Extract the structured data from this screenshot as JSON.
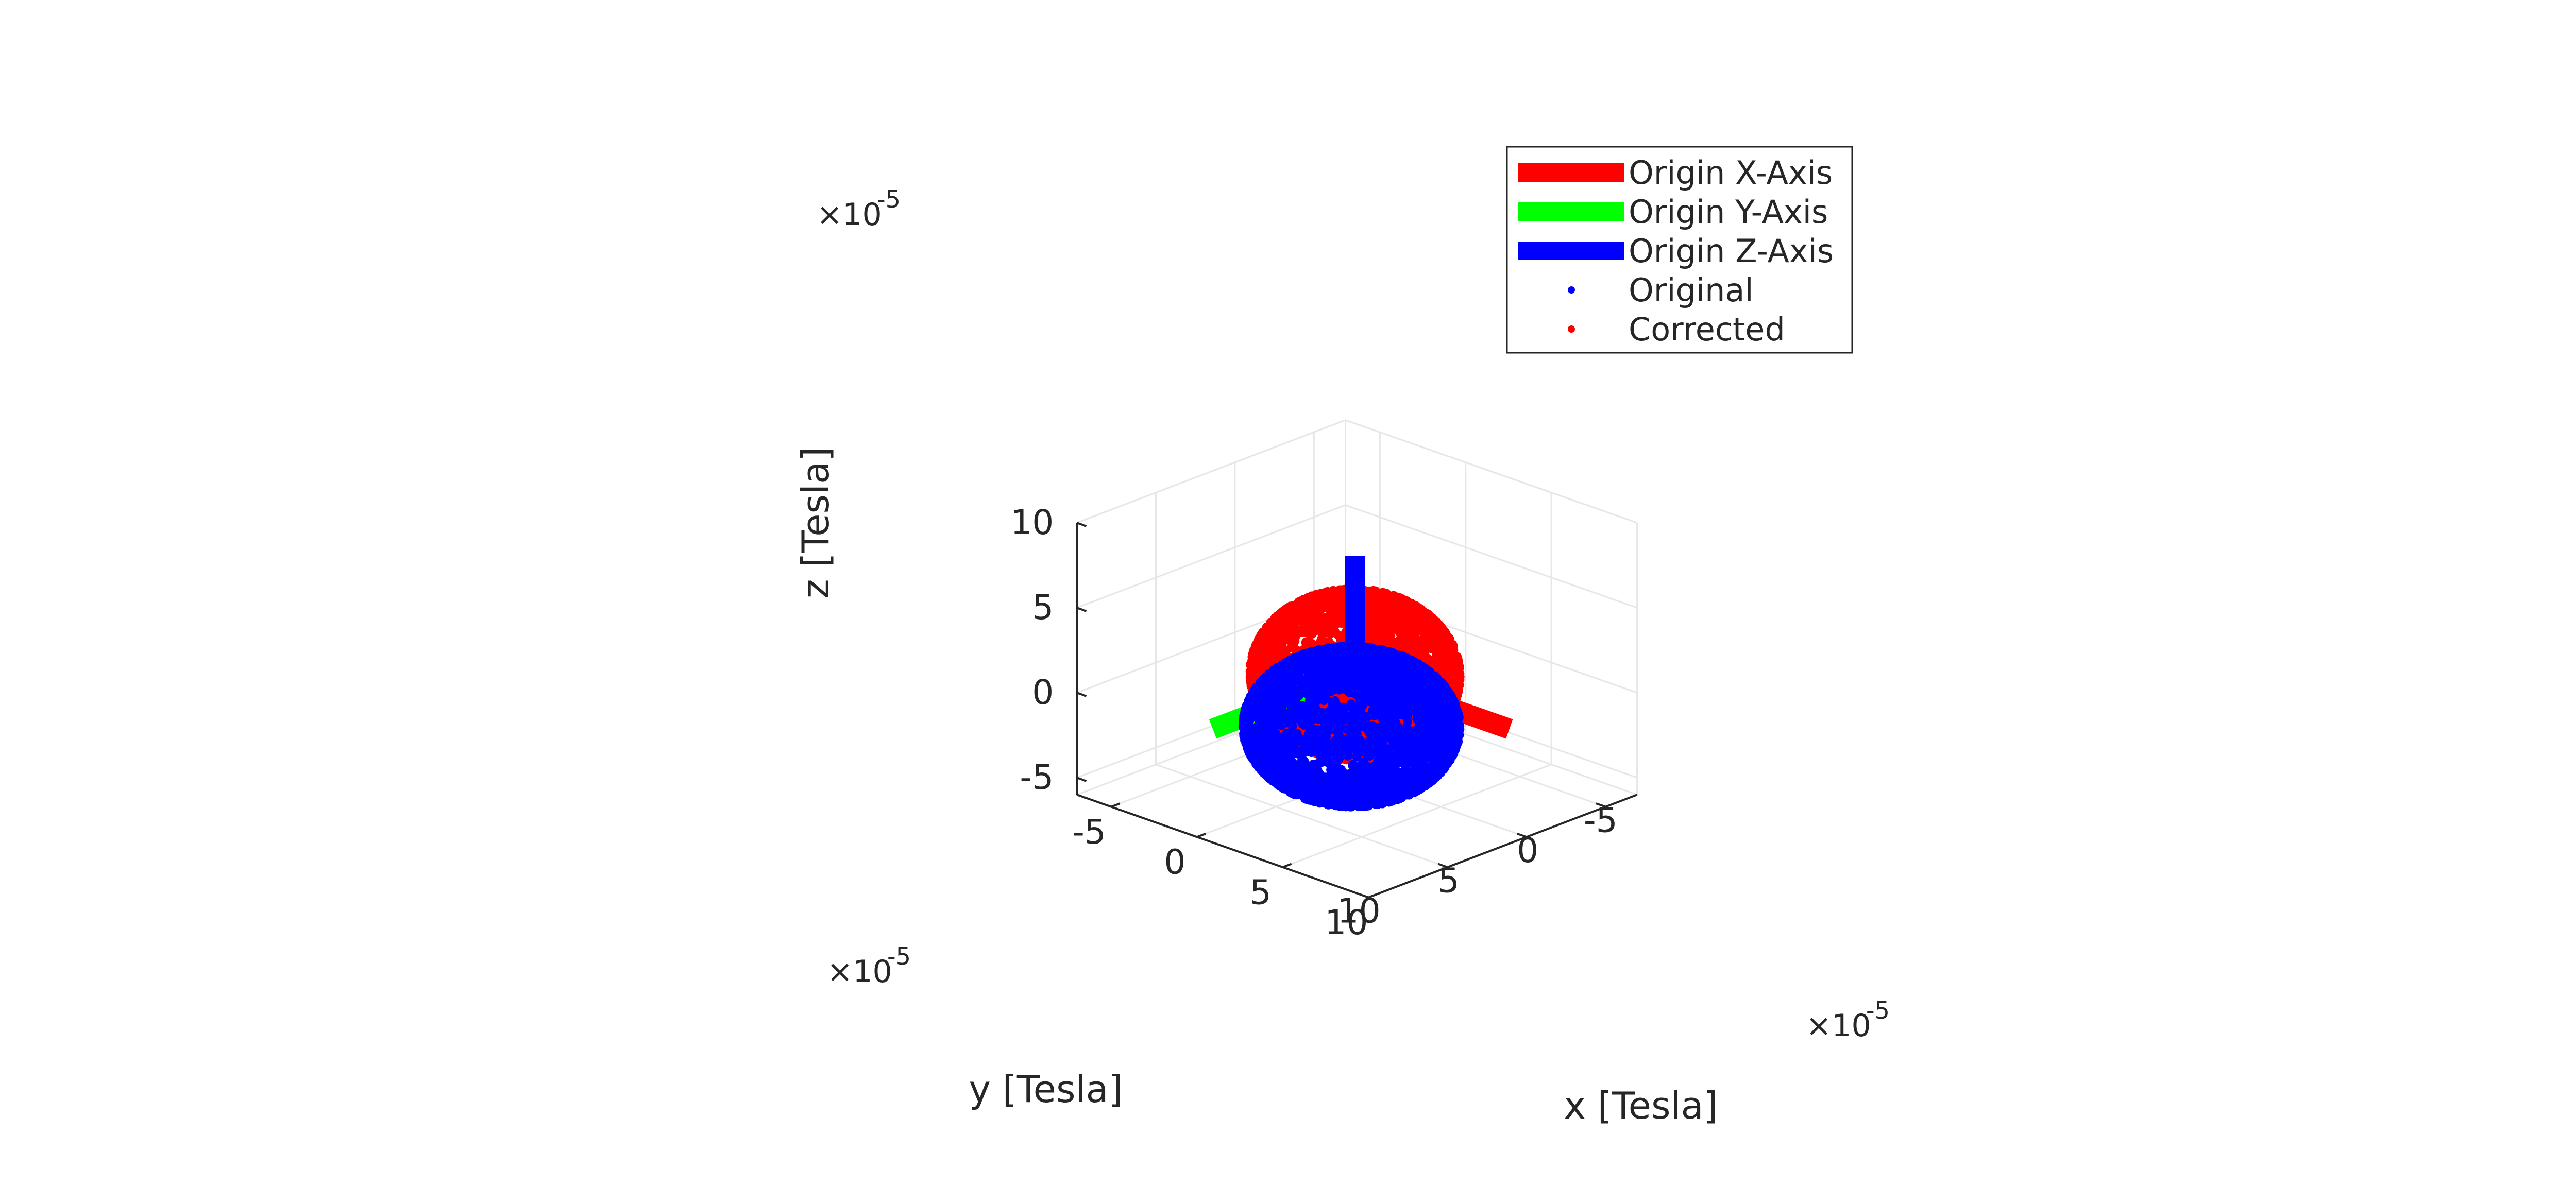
{
  "chart_data": {
    "type": "scatter",
    "dimensions": 3,
    "xlabel": "x [Tesla]",
    "ylabel": "y [Tesla]",
    "zlabel": "z [Tesla]",
    "scale_exponent_label": "×10",
    "scale_exponent": "-5",
    "xlim": [
      -7,
      10
    ],
    "ylim": [
      -7,
      10
    ],
    "zlim": [
      -6,
      10
    ],
    "xticks": [
      -5,
      0,
      5,
      10
    ],
    "yticks": [
      -5,
      0,
      5,
      10
    ],
    "zticks": [
      -5,
      0,
      5,
      10
    ],
    "xtick_labels": [
      "-5",
      "0",
      "5",
      "10"
    ],
    "ytick_labels": [
      "-5",
      "0",
      "5",
      "10"
    ],
    "ztick_labels": [
      "-5",
      "0",
      "5",
      "10"
    ],
    "grid": true,
    "legend_position": "top-right",
    "series": [
      {
        "name": "Origin X-Axis",
        "kind": "axis-line",
        "color": "#ff0000",
        "from": [
          0,
          0,
          0
        ],
        "to": [
          9,
          0,
          0
        ]
      },
      {
        "name": "Origin Y-Axis",
        "kind": "axis-line",
        "color": "#00ff00",
        "from": [
          0,
          0,
          0
        ],
        "to": [
          0,
          9,
          0
        ]
      },
      {
        "name": "Origin Z-Axis",
        "kind": "axis-line",
        "color": "#0000ff",
        "from": [
          0,
          0,
          0
        ],
        "to": [
          0,
          0,
          7
        ]
      },
      {
        "name": "Original",
        "kind": "points",
        "color": "#0000ff",
        "center": [
          -0.3,
          -0.1,
          -3.2
        ],
        "radii": [
          4.6,
          4.7,
          4.1
        ]
      },
      {
        "name": "Corrected",
        "kind": "points",
        "color": "#ff0000",
        "center": [
          0,
          0,
          0
        ],
        "radii": [
          4.5,
          4.5,
          4.5
        ]
      }
    ]
  }
}
